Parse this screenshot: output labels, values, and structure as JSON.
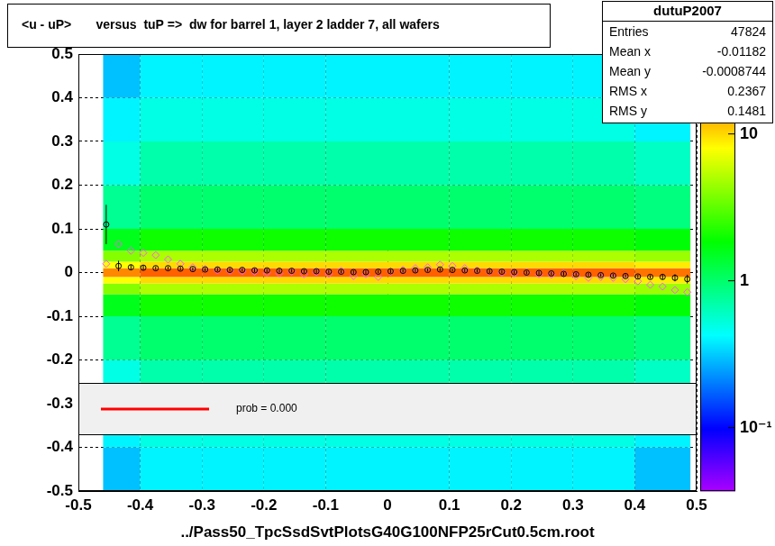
{
  "chart_data": {
    "type": "heatmap",
    "title": "<u - uP>       versus  tuP =>  dw for barrel 1, layer 2 ladder 7, all wafers",
    "x_label": "../Pass50_TpcSsdSvtPlotsG40G100NFP25rCut0.5cm.root",
    "xlim": [
      -0.5,
      0.5
    ],
    "xticks": [
      -0.5,
      -0.4,
      -0.3,
      -0.2,
      -0.1,
      0,
      0.1,
      0.2,
      0.3,
      0.4,
      0.5
    ],
    "ylim": [
      -0.5,
      0.5
    ],
    "yticks": [
      -0.5,
      -0.4,
      -0.3,
      -0.2,
      -0.1,
      0,
      0.1,
      0.2,
      0.3,
      0.4,
      0.5
    ],
    "grid": true,
    "x_edges": [
      -0.46,
      -0.4,
      -0.3,
      -0.2,
      -0.1,
      0,
      0.1,
      0.2,
      0.3,
      0.4,
      0.49
    ],
    "y_edges": [
      -0.5,
      -0.4,
      -0.3,
      -0.2,
      -0.1,
      -0.05,
      -0.025,
      -0.01,
      0.01,
      0.025,
      0.05,
      0.1,
      0.2,
      0.3,
      0.4,
      0.5
    ],
    "cells": [
      [
        0.3,
        0.4,
        0.4,
        0.4,
        0.4,
        0.4,
        0.4,
        0.4,
        0.4,
        0.3
      ],
      [
        0.4,
        0.5,
        0.5,
        0.5,
        0.5,
        0.5,
        0.5,
        0.5,
        0.5,
        0.4
      ],
      [
        0.5,
        0.7,
        0.7,
        0.7,
        0.7,
        0.7,
        0.7,
        0.7,
        0.7,
        0.6
      ],
      [
        0.8,
        1,
        1,
        1,
        1,
        1,
        1,
        1,
        1,
        0.9
      ],
      [
        1.6,
        2,
        2,
        2,
        2,
        2,
        2,
        2,
        2,
        1.8
      ],
      [
        4,
        5,
        5,
        5,
        5,
        5,
        5,
        5,
        5,
        4.5
      ],
      [
        8,
        10,
        10,
        10,
        10,
        10,
        10,
        10,
        10,
        9
      ],
      [
        16,
        20,
        20,
        20,
        20,
        20,
        20,
        20,
        20,
        18
      ],
      [
        8,
        10,
        10,
        10,
        10,
        10,
        10,
        10,
        10,
        9
      ],
      [
        4,
        5,
        5,
        5,
        5,
        5,
        5,
        5,
        5,
        4.5
      ],
      [
        1.6,
        2,
        2,
        2,
        2,
        2,
        2,
        2,
        2,
        1.8
      ],
      [
        0.8,
        1,
        1,
        1,
        1,
        1,
        1,
        1,
        1,
        0.9
      ],
      [
        0.5,
        0.7,
        0.7,
        0.7,
        0.7,
        0.7,
        0.7,
        0.7,
        0.7,
        0.6
      ],
      [
        0.4,
        0.5,
        0.5,
        0.5,
        0.5,
        0.5,
        0.5,
        0.5,
        0.5,
        0.4
      ],
      [
        0.3,
        0.4,
        0.4,
        0.4,
        0.4,
        0.4,
        0.4,
        0.4,
        0.4,
        0.3
      ]
    ],
    "colorbar": {
      "zlim": [
        0.037,
        35
      ],
      "zticks": [
        {
          "value": 0.1,
          "label": "10⁻¹"
        },
        1,
        10
      ],
      "log": true
    },
    "series": [
      {
        "type": "scatter",
        "color": "#000000",
        "marker": "circle",
        "x": [
          -0.455,
          -0.435,
          -0.415,
          -0.395,
          -0.375,
          -0.355,
          -0.335,
          -0.315,
          -0.295,
          -0.275,
          -0.255,
          -0.235,
          -0.215,
          -0.195,
          -0.175,
          -0.155,
          -0.135,
          -0.115,
          -0.095,
          -0.075,
          -0.055,
          -0.035,
          -0.015,
          0.005,
          0.025,
          0.045,
          0.065,
          0.085,
          0.105,
          0.125,
          0.145,
          0.165,
          0.185,
          0.205,
          0.225,
          0.245,
          0.265,
          0.285,
          0.305,
          0.325,
          0.345,
          0.365,
          0.385,
          0.405,
          0.425,
          0.445,
          0.465,
          0.485
        ],
        "values": [
          0.11,
          0.015,
          0.012,
          0.011,
          0.01,
          0.01,
          0.009,
          0.008,
          0.007,
          0.007,
          0.006,
          0.006,
          0.005,
          0.005,
          0.004,
          0.004,
          0.003,
          0.003,
          0.002,
          0.002,
          0.001,
          0.001,
          0.002,
          0.003,
          0.004,
          0.005,
          0.006,
          0.007,
          0.006,
          0.005,
          0.004,
          0.003,
          0.002,
          0.001,
          0,
          -0.001,
          -0.002,
          -0.003,
          -0.004,
          -0.005,
          -0.006,
          -0.007,
          -0.008,
          -0.009,
          -0.01,
          -0.01,
          -0.012,
          -0.015
        ],
        "errors": [
          0.045,
          0.012,
          0.006,
          0.005,
          0.004,
          0.004,
          0.004,
          0.004,
          0.004,
          0.004,
          0.004,
          0.004,
          0.004,
          0.004,
          0.004,
          0.004,
          0.004,
          0.004,
          0.004,
          0.004,
          0.004,
          0.004,
          0.004,
          0.004,
          0.004,
          0.004,
          0.004,
          0.004,
          0.004,
          0.004,
          0.004,
          0.004,
          0.004,
          0.004,
          0.004,
          0.004,
          0.004,
          0.004,
          0.004,
          0.004,
          0.004,
          0.004,
          0.004,
          0.004,
          0.004,
          0.006,
          0.008,
          0.01
        ]
      },
      {
        "type": "scatter",
        "color": "#ff55ff",
        "marker": "diamond",
        "x": [
          -0.455,
          -0.435,
          -0.415,
          -0.395,
          -0.375,
          -0.355,
          -0.335,
          -0.315,
          -0.295,
          -0.275,
          -0.255,
          -0.235,
          -0.215,
          -0.195,
          -0.175,
          -0.155,
          -0.135,
          -0.115,
          -0.095,
          -0.075,
          -0.055,
          -0.035,
          -0.015,
          0.005,
          0.025,
          0.045,
          0.065,
          0.085,
          0.105,
          0.125,
          0.145,
          0.165,
          0.185,
          0.205,
          0.225,
          0.245,
          0.265,
          0.285,
          0.305,
          0.325,
          0.345,
          0.365,
          0.385,
          0.405,
          0.425,
          0.445,
          0.465,
          0.485
        ],
        "values": [
          0.02,
          0.065,
          0.05,
          0.045,
          0.04,
          0.03,
          0.02,
          0.012,
          0.008,
          0.005,
          0.004,
          0.003,
          0.002,
          0,
          -0.002,
          0.002,
          -0.004,
          0.001,
          -0.003,
          0.004,
          -0.008,
          -0.004,
          -0.01,
          0.002,
          0.006,
          0.01,
          0.012,
          0.018,
          0.015,
          0.01,
          0.005,
          0.002,
          0,
          -0.002,
          0,
          -0.004,
          -0.005,
          -0.002,
          -0.008,
          -0.012,
          -0.01,
          -0.012,
          -0.015,
          -0.02,
          -0.028,
          -0.032,
          -0.04,
          -0.045
        ]
      }
    ],
    "stats": {
      "title": "dutuP2007",
      "entries": [
        {
          "label": "Entries",
          "value": 47824
        },
        {
          "label": "Mean x",
          "value": -0.01182
        },
        {
          "label": "Mean y",
          "value": -0.0008744
        },
        {
          "label": "RMS x",
          "value": 0.2367
        },
        {
          "label": "RMS y",
          "value": 0.1481
        }
      ]
    },
    "annotations": [
      {
        "text": "prob = 0.000",
        "color": "#ff0000"
      }
    ]
  }
}
